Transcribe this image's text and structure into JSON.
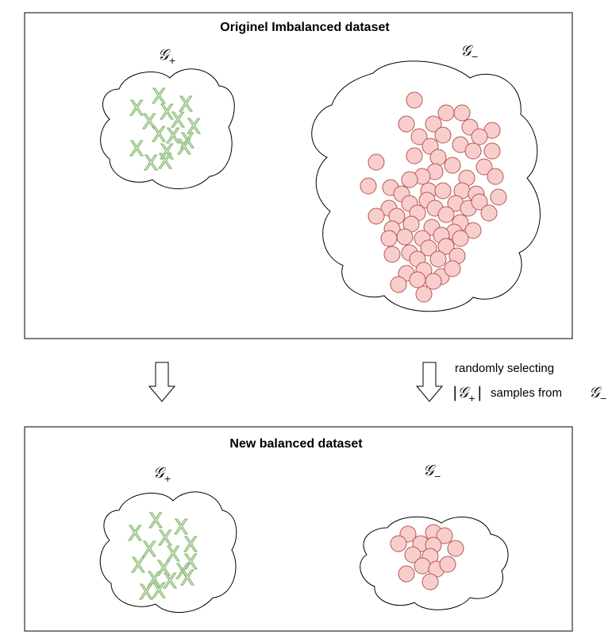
{
  "top_panel": {
    "title": "Originel Imbalanced dataset",
    "positive_label": {
      "symbol": "𝒢",
      "subscript": "+"
    },
    "negative_label": {
      "symbol": "𝒢",
      "subscript": "−"
    }
  },
  "bottom_panel": {
    "title": "New balanced dataset",
    "positive_label": {
      "symbol": "𝒢",
      "subscript": "+"
    },
    "negative_label": {
      "symbol": "𝒢",
      "subscript": "−"
    }
  },
  "annotation": {
    "line1": "randomly selecting",
    "set_bars": "|𝒢",
    "set_subscript": "+",
    "set_close": "|",
    "middle": "samples from",
    "target_symbol": "𝒢",
    "target_subscript": "−"
  },
  "colors": {
    "positive_fill": "#d5e8d4",
    "positive_stroke": "#82b366",
    "negative_fill": "#f8cecc",
    "negative_stroke": "#b85450"
  },
  "marker_glyph": "X"
}
